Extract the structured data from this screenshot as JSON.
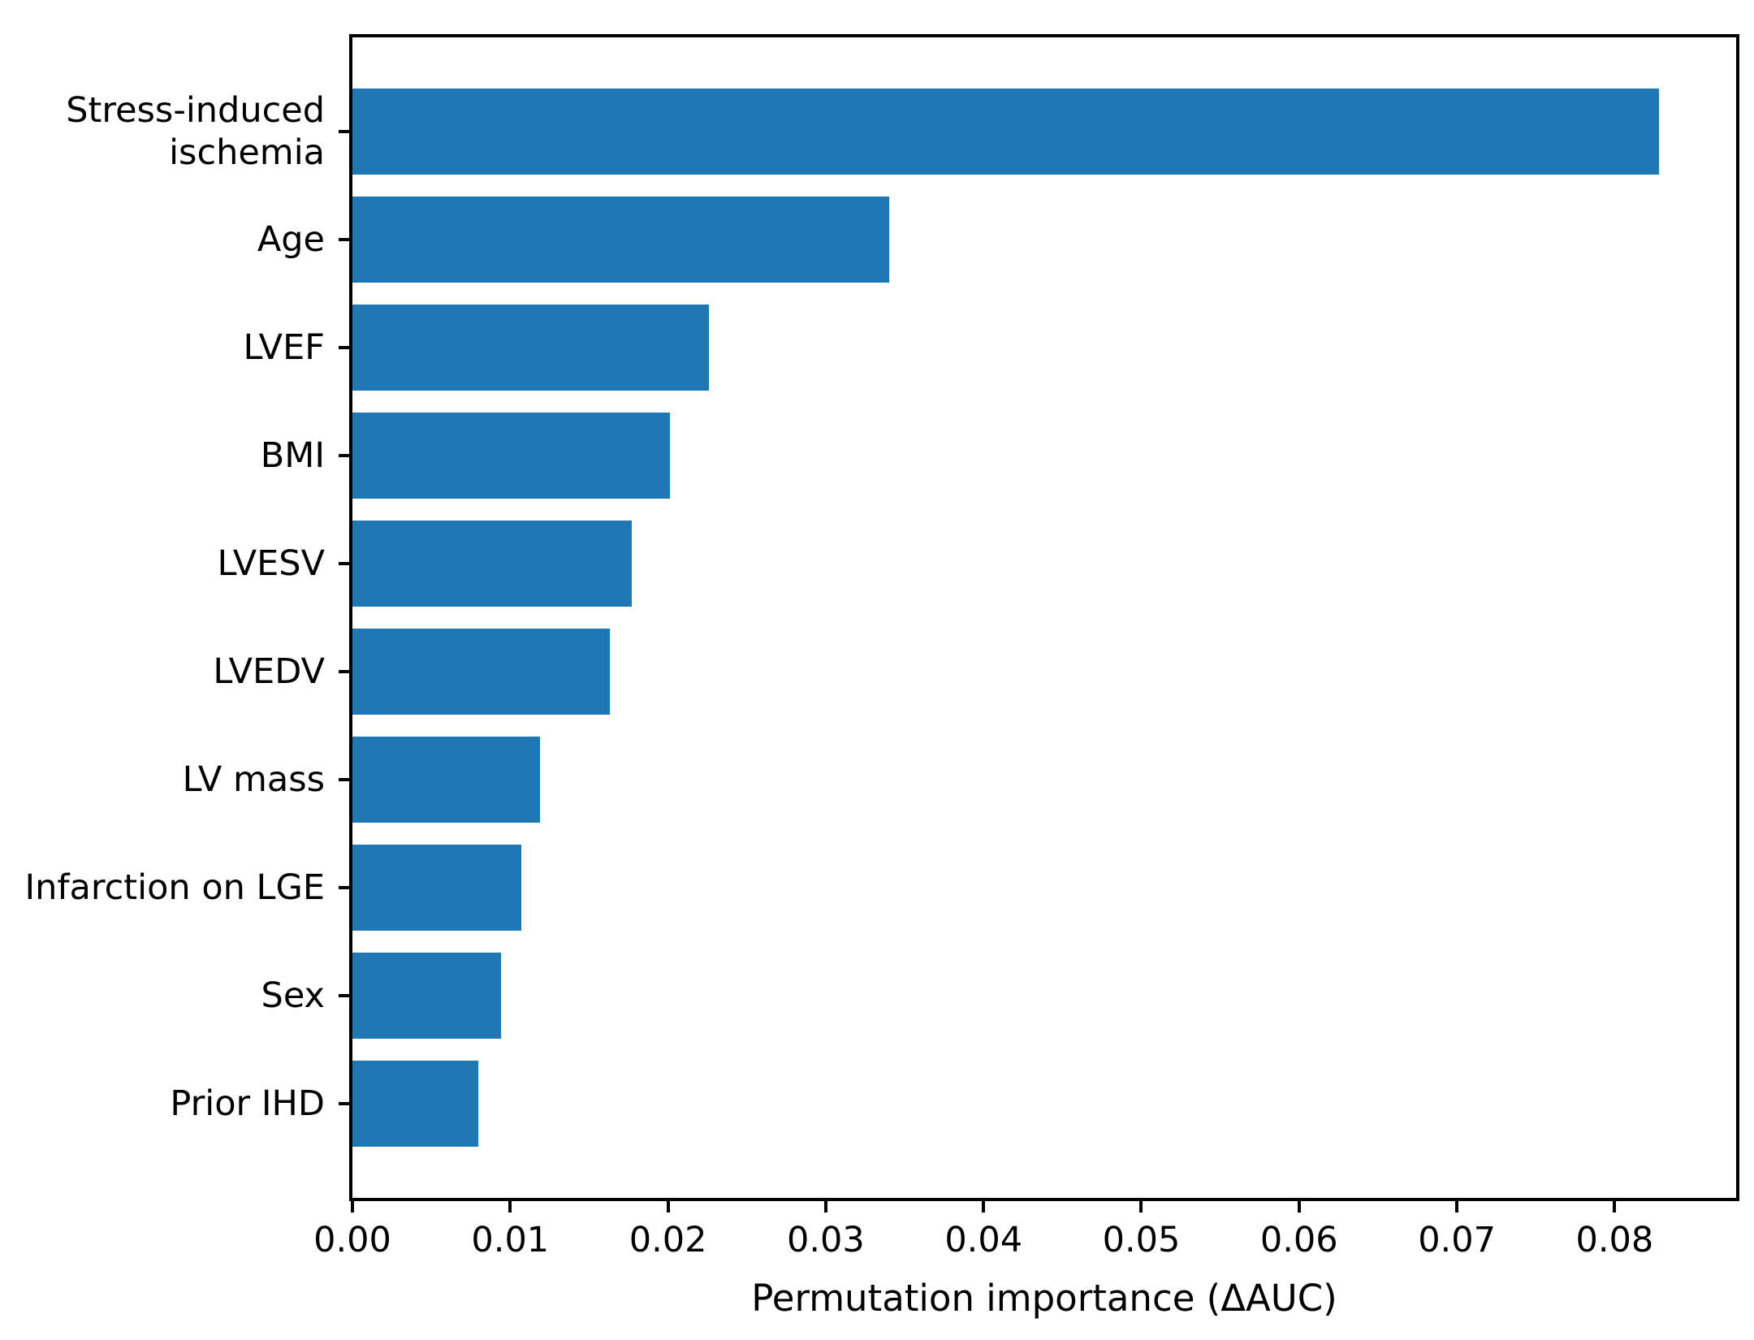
{
  "figure": {
    "background_color": "#ffffff",
    "text_color": "#000000"
  },
  "chart_data": {
    "type": "bar",
    "orientation": "horizontal",
    "title": "",
    "xlabel": "Permutation importance (ΔAUC)",
    "ylabel": "",
    "categories": [
      "Stress-induced\nischemia",
      "Age",
      "LVEF",
      "BMI",
      "LVESV",
      "LVEDV",
      "LV mass",
      "Infarction on LGE",
      "Sex",
      "Prior IHD"
    ],
    "values": [
      0.0828,
      0.034,
      0.0226,
      0.0201,
      0.0177,
      0.0163,
      0.0119,
      0.0107,
      0.0094,
      0.008
    ],
    "bar_color": "#1f77b4",
    "xlim": [
      0,
      0.0877
    ],
    "x_ticks": {
      "values": [
        0.0,
        0.01,
        0.02,
        0.03,
        0.04,
        0.05,
        0.06,
        0.07,
        0.08
      ],
      "labels": [
        "0.00",
        "0.01",
        "0.02",
        "0.03",
        "0.04",
        "0.05",
        "0.06",
        "0.07",
        "0.08"
      ]
    },
    "grid": false,
    "legend": null
  }
}
